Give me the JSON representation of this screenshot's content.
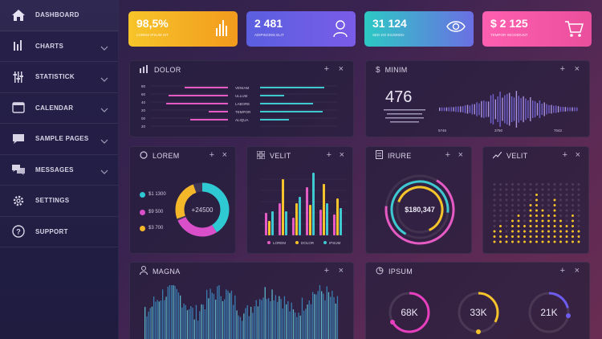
{
  "sidebar": {
    "items": [
      {
        "label": "DASHBOARD",
        "icon": "home-icon"
      },
      {
        "label": "CHARTS",
        "icon": "bar-chart-icon"
      },
      {
        "label": "STATISTICK",
        "icon": "sliders-icon"
      },
      {
        "label": "CALENDAR",
        "icon": "calendar-icon"
      },
      {
        "label": "SAMPLE PAGES",
        "icon": "page-icon"
      },
      {
        "label": "MESSAGES",
        "icon": "messages-icon"
      },
      {
        "label": "SETTINGS",
        "icon": "gear-icon"
      },
      {
        "label": "SUPPORT",
        "icon": "help-icon"
      }
    ]
  },
  "kpis": [
    {
      "value": "98,5%",
      "sub": "Lorem ipsum sit",
      "icon": "bar-chart-icon",
      "gradient": [
        "#f7c52a",
        "#f29a1d"
      ]
    },
    {
      "value": "2 481",
      "sub": "Adipiscing elit",
      "icon": "user-icon",
      "gradient": [
        "#5a5fe0",
        "#7a5ce8"
      ]
    },
    {
      "value": "31 124",
      "sub": "Sed do eiusmod",
      "icon": "eye-icon",
      "gradient": [
        "#2cc9c4",
        "#6b6fe3"
      ]
    },
    {
      "value": "$ 2 125",
      "sub": "Tempor incididunt",
      "icon": "cart-icon",
      "gradient": [
        "#ff5fb0",
        "#e94f9c"
      ]
    }
  ],
  "panels": {
    "dolor": {
      "title": "Dolor"
    },
    "minim": {
      "title": "Minim",
      "big_value": "476",
      "axis": [
        "5746",
        "3750",
        "7042"
      ]
    },
    "lorem": {
      "title": "Lorem",
      "center": "+24500",
      "legend": [
        {
          "label": "$1 1300",
          "color": "#2ec9d2"
        },
        {
          "label": "$9 500",
          "color": "#d94fc9"
        },
        {
          "label": "$3 700",
          "color": "#f5b72a"
        }
      ]
    },
    "velit": {
      "title": "Velit",
      "legend": [
        "LOREM",
        "DOLOR",
        "IPSUM"
      ]
    },
    "irure": {
      "title": "Irure",
      "center": "$180,347"
    },
    "velit2": {
      "title": "Velit"
    },
    "magna": {
      "title": "Magna"
    },
    "ipsum": {
      "title": "Ipsum",
      "gauges": [
        {
          "label": "68K",
          "color": "#e83fbf",
          "pct": 0.68
        },
        {
          "label": "33K",
          "color": "#f5c32a",
          "pct": 0.33
        },
        {
          "label": "21K",
          "color": "#6e5cf0",
          "pct": 0.21
        }
      ]
    }
  },
  "dolor_chart": {
    "left_axis": [
      "80",
      "60",
      "40",
      "20",
      "00",
      "20"
    ],
    "labels": [
      "VENIAM",
      "ULLUM",
      "LABORE",
      "TEMPOR",
      "ALIQUA"
    ]
  },
  "controls": {
    "plus": "+",
    "close": "×"
  }
}
